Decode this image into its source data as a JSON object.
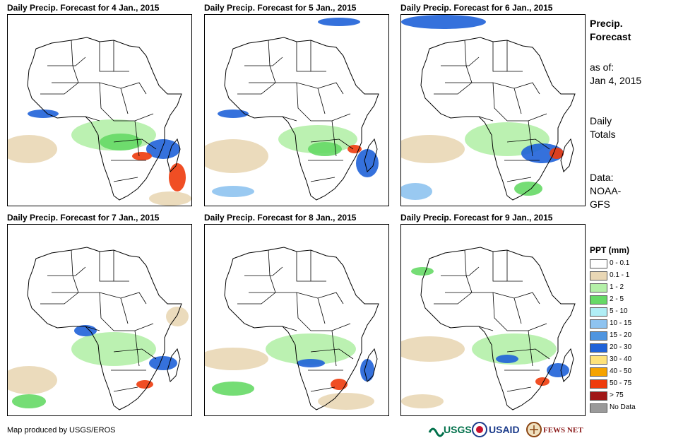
{
  "panels": [
    {
      "title": "Daily Precip. Forecast for 4 Jan., 2015"
    },
    {
      "title": "Daily Precip. Forecast for 5 Jan., 2015"
    },
    {
      "title": "Daily Precip. Forecast for 6 Jan., 2015"
    },
    {
      "title": "Daily Precip. Forecast for 7 Jan., 2015"
    },
    {
      "title": "Daily Precip. Forecast for 8 Jan., 2015"
    },
    {
      "title": "Daily Precip. Forecast for 9 Jan., 2015"
    }
  ],
  "sidebar": {
    "title_line1": "Precip.",
    "title_line2": "Forecast",
    "asof_line1": "as of:",
    "asof_line2": "Jan 4, 2015",
    "totals_line1": "Daily",
    "totals_line2": "Totals",
    "data_line1": "Data:",
    "data_line2": "NOAA-",
    "data_line3": "GFS"
  },
  "legend": {
    "title": "PPT (mm)",
    "items": [
      {
        "label": "0 - 0.1",
        "color": "#ffffff"
      },
      {
        "label": "0.1 - 1",
        "color": "#e9d7b5"
      },
      {
        "label": "1 - 2",
        "color": "#b4f0a8"
      },
      {
        "label": "2 - 5",
        "color": "#66d966"
      },
      {
        "label": "5 - 10",
        "color": "#b0eef5"
      },
      {
        "label": "10 - 15",
        "color": "#8ec3f0"
      },
      {
        "label": "15 - 20",
        "color": "#4f95e0"
      },
      {
        "label": "20 - 30",
        "color": "#1f62d8"
      },
      {
        "label": "30 - 40",
        "color": "#fde27a"
      },
      {
        "label": "40 - 50",
        "color": "#f5a300"
      },
      {
        "label": "50 - 75",
        "color": "#ee3b0c"
      },
      {
        "label": "> 75",
        "color": "#a01818"
      },
      {
        "label": "No Data",
        "color": "#9a9a9a"
      }
    ]
  },
  "credit": "Map produced by USGS/EROS",
  "logos": {
    "usgs": "USGS",
    "usaid": "USAID",
    "fewsnet": "FEWS NET"
  },
  "colors": {
    "border": "#000000",
    "dry": "#e9d7b5",
    "light": "#b4f0a8",
    "moderate": "#66d966",
    "heavy_blue": "#1f62d8",
    "heavy_red": "#ee3b0c"
  }
}
